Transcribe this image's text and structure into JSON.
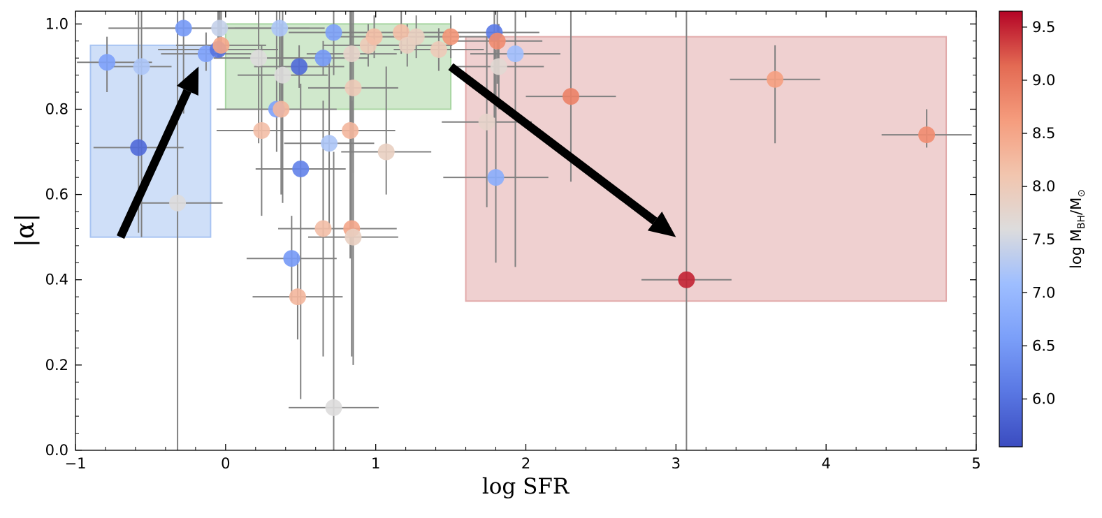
{
  "chart_data": {
    "type": "scatter",
    "xlabel": "log SFR",
    "ylabel": "|α|",
    "xlim": [
      -1,
      5
    ],
    "ylim": [
      0,
      1.03
    ],
    "x_ticks": [
      -1,
      0,
      1,
      2,
      3,
      4,
      5
    ],
    "x_tick_labels": [
      "−1",
      "0",
      "1",
      "2",
      "3",
      "4",
      "5"
    ],
    "y_ticks": [
      0.0,
      0.2,
      0.4,
      0.6,
      0.8,
      1.0
    ],
    "y_tick_labels": [
      "0.0",
      "0.2",
      "0.4",
      "0.6",
      "0.8",
      "1.0"
    ],
    "colorbar": {
      "label": "log M_BH/M_⊙",
      "label_main": "log M",
      "label_sub": "BH",
      "label_tail": "/M",
      "label_sun": "⊙",
      "range": [
        5.55,
        9.65
      ],
      "ticks": [
        6.0,
        6.5,
        7.0,
        7.5,
        8.0,
        8.5,
        9.0,
        9.5
      ],
      "tick_labels": [
        "6.0",
        "6.5",
        "7.0",
        "7.5",
        "8.0",
        "8.5",
        "9.0",
        "9.5"
      ],
      "colormap": "coolwarm"
    },
    "regions": [
      {
        "name": "blue-region",
        "x": [
          -0.9,
          -0.1
        ],
        "y": [
          0.5,
          0.95
        ],
        "color": "#a8c4f2"
      },
      {
        "name": "green-region",
        "x": [
          0.0,
          1.5
        ],
        "y": [
          0.8,
          1.0
        ],
        "color": "#a9d6a3"
      },
      {
        "name": "red-region",
        "x": [
          1.6,
          4.8
        ],
        "y": [
          0.35,
          0.97
        ],
        "color": "#e2aaaa"
      }
    ],
    "arrows": [
      {
        "name": "up-arrow",
        "from": [
          -0.7,
          0.5
        ],
        "to": [
          -0.18,
          0.9
        ]
      },
      {
        "name": "down-arrow",
        "from": [
          1.5,
          0.9
        ],
        "to": [
          3.0,
          0.5
        ]
      }
    ],
    "points": [
      {
        "x": -0.79,
        "y": 0.91,
        "m": 6.6,
        "xerr": [
          0.2,
          0.3
        ],
        "yerr": [
          0.07,
          0.06
        ]
      },
      {
        "x": -0.56,
        "y": 0.9,
        "m": 7.2,
        "xerr": [
          0.2,
          0.2
        ],
        "yerr": [
          0.4,
          0.2
        ]
      },
      {
        "x": -0.58,
        "y": 0.71,
        "m": 5.9,
        "xerr": [
          0.3,
          0.3
        ],
        "yerr": [
          0.2,
          0.4
        ]
      },
      {
        "x": -0.28,
        "y": 0.99,
        "m": 6.5,
        "xerr": [
          0.5,
          0.5
        ],
        "yerr": [
          0.2,
          0.2
        ]
      },
      {
        "x": -0.32,
        "y": 0.58,
        "m": 7.6,
        "xerr": [
          0.25,
          0.3
        ],
        "yerr": [
          0.58,
          0.45
        ]
      },
      {
        "x": -0.13,
        "y": 0.93,
        "m": 6.6,
        "xerr": [
          0.3,
          0.3
        ],
        "yerr": [
          0.04,
          0.05
        ]
      },
      {
        "x": -0.04,
        "y": 0.99,
        "m": 7.4,
        "xerr": [
          0.5,
          0.6
        ],
        "yerr": [
          0.07,
          0.2
        ]
      },
      {
        "x": -0.05,
        "y": 0.94,
        "m": 6.0,
        "xerr": [
          0.4,
          0.4
        ],
        "yerr": [
          0.02,
          0.2
        ]
      },
      {
        "x": -0.03,
        "y": 0.95,
        "m": 8.5,
        "xerr": [
          0.3,
          0.3
        ],
        "yerr": [
          0.03,
          0.2
        ]
      },
      {
        "x": 0.22,
        "y": 0.92,
        "m": 7.6,
        "xerr": [
          0.3,
          0.3
        ],
        "yerr": [
          0.2,
          0.2
        ]
      },
      {
        "x": 0.24,
        "y": 0.75,
        "m": 8.2,
        "xerr": [
          0.3,
          0.4
        ],
        "yerr": [
          0.2,
          0.2
        ]
      },
      {
        "x": 0.34,
        "y": 0.8,
        "m": 6.6,
        "xerr": [
          0.4,
          0.4
        ],
        "yerr": [
          0.1,
          0.3
        ]
      },
      {
        "x": 0.37,
        "y": 0.8,
        "m": 8.3,
        "xerr": [
          0.3,
          0.3
        ],
        "yerr": [
          0.2,
          0.2
        ]
      },
      {
        "x": 0.36,
        "y": 0.99,
        "m": 7.2,
        "xerr": [
          0.3,
          0.3
        ],
        "yerr": [
          0.2,
          0.2
        ]
      },
      {
        "x": 0.38,
        "y": 0.88,
        "m": 7.6,
        "xerr": [
          0.3,
          0.3
        ],
        "yerr": [
          0.3,
          0.2
        ]
      },
      {
        "x": 0.44,
        "y": 0.45,
        "m": 6.5,
        "xerr": [
          0.3,
          0.3
        ],
        "yerr": [
          0.1,
          0.1
        ]
      },
      {
        "x": 0.48,
        "y": 0.36,
        "m": 8.3,
        "xerr": [
          0.3,
          0.3
        ],
        "yerr": [
          0.1,
          0.1
        ]
      },
      {
        "x": 0.49,
        "y": 0.9,
        "m": 5.9,
        "xerr": [
          0.3,
          0.3
        ],
        "yerr": [
          0.05,
          0.05
        ]
      },
      {
        "x": 0.5,
        "y": 0.66,
        "m": 6.2,
        "xerr": [
          0.3,
          0.3
        ],
        "yerr": [
          0.54,
          0.2
        ]
      },
      {
        "x": 0.65,
        "y": 0.92,
        "m": 6.5,
        "xerr": [
          0.3,
          0.3
        ],
        "yerr": [
          0.04,
          0.04
        ]
      },
      {
        "x": 0.65,
        "y": 0.52,
        "m": 8.2,
        "xerr": [
          0.3,
          0.3
        ],
        "yerr": [
          0.3,
          0.3
        ]
      },
      {
        "x": 0.69,
        "y": 0.72,
        "m": 7.2,
        "xerr": [
          0.3,
          0.3
        ],
        "yerr": [
          0.2,
          0.2
        ]
      },
      {
        "x": 0.72,
        "y": 0.98,
        "m": 6.6,
        "xerr": [
          0.3,
          0.3
        ],
        "yerr": [
          0.1,
          0.1
        ]
      },
      {
        "x": 0.72,
        "y": 0.1,
        "m": 7.6,
        "xerr": [
          0.3,
          0.3
        ],
        "yerr": [
          0.1,
          0.6
        ]
      },
      {
        "x": 0.84,
        "y": 0.93,
        "m": 7.8,
        "xerr": [
          0.3,
          0.3
        ],
        "yerr": [
          0.2,
          0.2
        ]
      },
      {
        "x": 0.85,
        "y": 0.85,
        "m": 8.0,
        "xerr": [
          0.3,
          0.3
        ],
        "yerr": [
          0.2,
          0.2
        ]
      },
      {
        "x": 0.83,
        "y": 0.75,
        "m": 8.3,
        "xerr": [
          0.3,
          0.3
        ],
        "yerr": [
          0.3,
          0.3
        ]
      },
      {
        "x": 0.84,
        "y": 0.52,
        "m": 8.5,
        "xerr": [
          0.3,
          0.3
        ],
        "yerr": [
          0.3,
          0.3
        ]
      },
      {
        "x": 0.85,
        "y": 0.5,
        "m": 7.9,
        "xerr": [
          0.3,
          0.3
        ],
        "yerr": [
          0.3,
          0.3
        ]
      },
      {
        "x": 0.95,
        "y": 0.95,
        "m": 8.0,
        "xerr": [
          0.3,
          0.3
        ],
        "yerr": [
          0.05,
          0.05
        ]
      },
      {
        "x": 0.99,
        "y": 0.97,
        "m": 8.2,
        "xerr": [
          0.3,
          0.3
        ],
        "yerr": [
          0.05,
          0.05
        ]
      },
      {
        "x": 1.07,
        "y": 0.7,
        "m": 7.9,
        "xerr": [
          0.3,
          0.3
        ],
        "yerr": [
          0.1,
          0.2
        ]
      },
      {
        "x": 1.17,
        "y": 0.98,
        "m": 8.2,
        "xerr": [
          0.3,
          0.3
        ],
        "yerr": [
          0.05,
          0.05
        ]
      },
      {
        "x": 1.21,
        "y": 0.95,
        "m": 7.9,
        "xerr": [
          0.3,
          0.3
        ],
        "yerr": [
          0.05,
          0.05
        ]
      },
      {
        "x": 1.27,
        "y": 0.97,
        "m": 7.9,
        "xerr": [
          0.3,
          0.3
        ],
        "yerr": [
          0.05,
          0.05
        ]
      },
      {
        "x": 1.42,
        "y": 0.94,
        "m": 8.0,
        "xerr": [
          0.3,
          0.3
        ],
        "yerr": [
          0.05,
          0.05
        ]
      },
      {
        "x": 1.5,
        "y": 0.97,
        "m": 8.7,
        "xerr": [
          0.3,
          0.3
        ],
        "yerr": [
          0.05,
          0.05
        ]
      },
      {
        "x": 1.74,
        "y": 0.77,
        "m": 7.8,
        "xerr": [
          0.3,
          0.3
        ],
        "yerr": [
          0.2,
          0.2
        ]
      },
      {
        "x": 1.79,
        "y": 0.98,
        "m": 6.1,
        "xerr": [
          0.3,
          0.3
        ],
        "yerr": [
          0.2,
          0.2
        ]
      },
      {
        "x": 1.81,
        "y": 0.96,
        "m": 8.8,
        "xerr": [
          0.3,
          0.3
        ],
        "yerr": [
          0.1,
          0.1
        ]
      },
      {
        "x": 1.82,
        "y": 0.9,
        "m": 7.7,
        "xerr": [
          0.3,
          0.3
        ],
        "yerr": [
          0.1,
          0.1
        ]
      },
      {
        "x": 1.8,
        "y": 0.64,
        "m": 6.8,
        "xerr": [
          0.35,
          0.35
        ],
        "yerr": [
          0.2,
          0.3
        ]
      },
      {
        "x": 1.93,
        "y": 0.93,
        "m": 7.1,
        "xerr": [
          0.3,
          0.3
        ],
        "yerr": [
          0.5,
          0.2
        ]
      },
      {
        "x": 2.3,
        "y": 0.83,
        "m": 8.9,
        "xerr": [
          0.3,
          0.3
        ],
        "yerr": [
          0.2,
          0.2
        ]
      },
      {
        "x": 3.07,
        "y": 0.4,
        "m": 9.5,
        "xerr": [
          0.3,
          0.3
        ],
        "yerr": [
          0.4,
          0.63
        ]
      },
      {
        "x": 3.66,
        "y": 0.87,
        "m": 8.6,
        "xerr": [
          0.3,
          0.3
        ],
        "yerr": [
          0.15,
          0.08
        ]
      },
      {
        "x": 4.67,
        "y": 0.74,
        "m": 8.8,
        "xerr": [
          0.3,
          0.3
        ],
        "yerr": [
          0.03,
          0.06
        ]
      }
    ]
  }
}
